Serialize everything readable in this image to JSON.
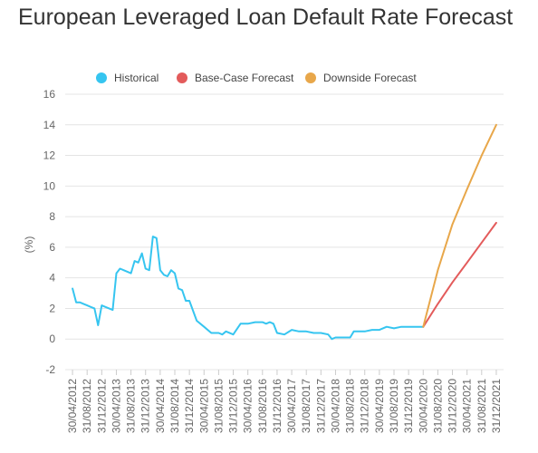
{
  "chart_data": {
    "type": "line",
    "title": "European Leveraged Loan Default Rate Forecast",
    "ylabel": "(%)",
    "xlabel": "",
    "ylim": [
      -2,
      16
    ],
    "yticks": [
      "16",
      "14",
      "12",
      "10",
      "8",
      "6",
      "4",
      "2",
      "0",
      "-2"
    ],
    "grid": true,
    "legend_position": "top",
    "categories": [
      "30/04/2012",
      "31/08/2012",
      "31/12/2012",
      "30/04/2013",
      "31/08/2013",
      "31/12/2013",
      "30/04/2014",
      "31/08/2014",
      "31/12/2014",
      "30/04/2015",
      "31/08/2015",
      "31/12/2015",
      "30/04/2016",
      "31/08/2016",
      "31/12/2016",
      "30/04/2017",
      "31/08/2017",
      "31/12/2017",
      "30/04/2018",
      "31/08/2018",
      "31/12/2018",
      "30/04/2019",
      "31/08/2019",
      "31/12/2019",
      "30/04/2020",
      "31/08/2020",
      "31/12/2020",
      "30/04/2021",
      "31/08/2021",
      "31/12/2021"
    ],
    "series": [
      {
        "name": "Historical",
        "color": "#36c5f0",
        "x": [
          0,
          0.25,
          0.5,
          0.75,
          1,
          1.25,
          1.5,
          1.75,
          2,
          2.25,
          2.5,
          2.75,
          3,
          3.25,
          3.5,
          3.75,
          4,
          4.25,
          4.5,
          4.75,
          5,
          5.25,
          5.5,
          5.75,
          6,
          6.25,
          6.5,
          6.75,
          7,
          7.25,
          7.5,
          7.75,
          8,
          8.5,
          9,
          9.5,
          9.75,
          10,
          10.25,
          10.5,
          11,
          11.5,
          12,
          12.5,
          13,
          13.25,
          13.5,
          13.75,
          14,
          14.5,
          15,
          15.5,
          16,
          16.5,
          17,
          17.5,
          17.75,
          18,
          18.5,
          19,
          19.25,
          19.5,
          20,
          20.5,
          21,
          21.5,
          22,
          22.5,
          23,
          23.5,
          24
        ],
        "values": [
          3.3,
          2.4,
          2.4,
          2.3,
          2.2,
          2.1,
          2.0,
          0.9,
          2.2,
          2.1,
          2.0,
          1.9,
          4.3,
          4.6,
          4.5,
          4.4,
          4.3,
          5.1,
          5.0,
          5.6,
          4.6,
          4.5,
          6.7,
          6.6,
          4.5,
          4.2,
          4.1,
          4.5,
          4.3,
          3.3,
          3.2,
          2.5,
          2.5,
          1.2,
          0.8,
          0.4,
          0.4,
          0.4,
          0.3,
          0.5,
          0.3,
          1.0,
          1.0,
          1.1,
          1.1,
          1.0,
          1.1,
          1.0,
          0.4,
          0.3,
          0.6,
          0.5,
          0.5,
          0.4,
          0.4,
          0.3,
          0.0,
          0.1,
          0.1,
          0.1,
          0.5,
          0.5,
          0.5,
          0.6,
          0.6,
          0.8,
          0.7,
          0.8,
          0.8,
          0.8,
          0.8
        ]
      },
      {
        "name": "Base-Case Forecast",
        "color": "#e35b5b",
        "x": [
          24,
          25,
          26,
          27,
          28,
          29
        ],
        "values": [
          0.8,
          2.3,
          3.7,
          5.0,
          6.3,
          7.6
        ]
      },
      {
        "name": "Downside Forecast",
        "color": "#e8a74a",
        "x": [
          24,
          25,
          26,
          27,
          28,
          29
        ],
        "values": [
          0.8,
          4.5,
          7.5,
          9.8,
          12.0,
          14.0
        ]
      }
    ]
  }
}
